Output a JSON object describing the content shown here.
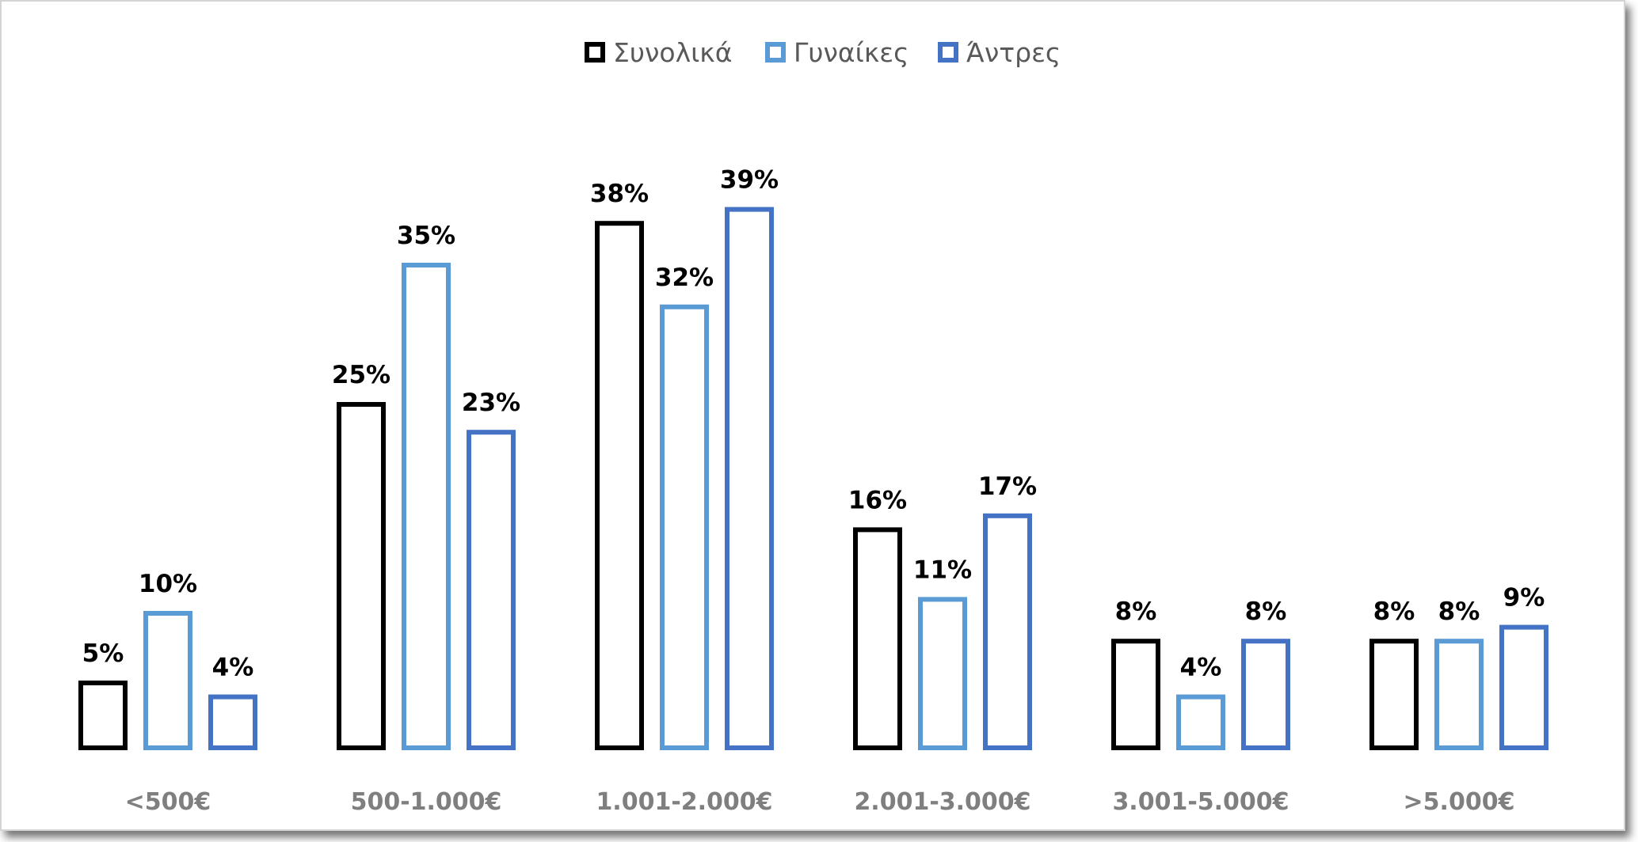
{
  "chart_data": {
    "type": "bar",
    "title": "",
    "xlabel": "",
    "ylabel": "",
    "ylim": [
      0,
      40
    ],
    "grid": false,
    "legend_position": "top",
    "categories": [
      "<500€",
      "500-1.000€",
      "1.001-2.000€",
      "2.001-3.000€",
      "3.001-5.000€",
      ">5.000€"
    ],
    "series": [
      {
        "name": "Συνολικά",
        "color": "#000000",
        "values": [
          5,
          25,
          38,
          16,
          8,
          8
        ],
        "labels": [
          "5%",
          "25%",
          "38%",
          "16%",
          "8%",
          "8%"
        ]
      },
      {
        "name": "Γυναίκες",
        "color": "#5b9bd5",
        "values": [
          10,
          35,
          32,
          11,
          4,
          8
        ],
        "labels": [
          "10%",
          "35%",
          "32%",
          "11%",
          "4%",
          "8%"
        ]
      },
      {
        "name": "Άντρες",
        "color": "#4472c4",
        "values": [
          4,
          23,
          39,
          17,
          8,
          9
        ],
        "labels": [
          "4%",
          "23%",
          "39%",
          "17%",
          "8%",
          "9%"
        ]
      }
    ]
  }
}
